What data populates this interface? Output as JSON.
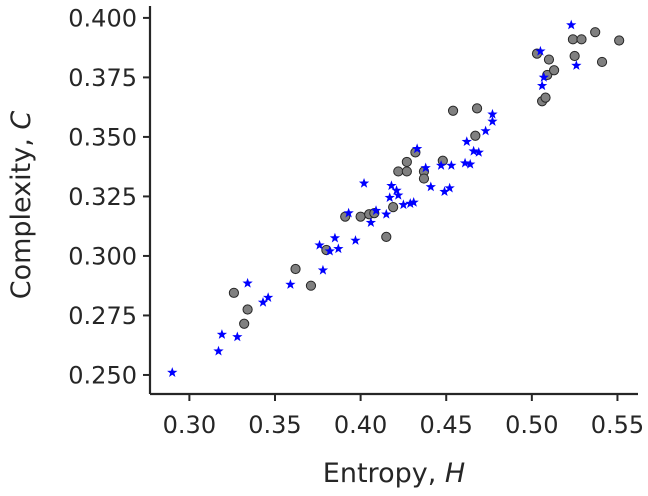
{
  "chart_data": {
    "type": "scatter",
    "title": "",
    "xlabel": "Entropy, ",
    "xlabel_symbol": "H",
    "ylabel": "Complexity, ",
    "ylabel_symbol": "C",
    "xlim": [
      0.277,
      0.562
    ],
    "ylim": [
      0.242,
      0.405
    ],
    "x_ticks": [
      0.3,
      0.35,
      0.4,
      0.45,
      0.5,
      0.55
    ],
    "x_tick_labels": [
      "0.30",
      "0.35",
      "0.40",
      "0.45",
      "0.50",
      "0.55"
    ],
    "y_ticks": [
      0.25,
      0.275,
      0.3,
      0.325,
      0.35,
      0.375,
      0.4
    ],
    "y_tick_labels": [
      "0.250",
      "0.275",
      "0.300",
      "0.325",
      "0.350",
      "0.375",
      "0.400"
    ],
    "grid": false,
    "series": [
      {
        "marker": "circle",
        "color": "#808080",
        "edgecolor": "#262626",
        "points": [
          [
            0.326,
            0.2845
          ],
          [
            0.332,
            0.2715
          ],
          [
            0.334,
            0.2775
          ],
          [
            0.362,
            0.2945
          ],
          [
            0.371,
            0.2875
          ],
          [
            0.38,
            0.3025
          ],
          [
            0.391,
            0.3165
          ],
          [
            0.4,
            0.3165
          ],
          [
            0.405,
            0.3175
          ],
          [
            0.408,
            0.318
          ],
          [
            0.415,
            0.308
          ],
          [
            0.419,
            0.3205
          ],
          [
            0.422,
            0.3355
          ],
          [
            0.427,
            0.3355
          ],
          [
            0.427,
            0.3395
          ],
          [
            0.432,
            0.3435
          ],
          [
            0.437,
            0.3355
          ],
          [
            0.437,
            0.3325
          ],
          [
            0.448,
            0.34
          ],
          [
            0.454,
            0.361
          ],
          [
            0.467,
            0.3505
          ],
          [
            0.468,
            0.362
          ],
          [
            0.503,
            0.385
          ],
          [
            0.506,
            0.365
          ],
          [
            0.508,
            0.3665
          ],
          [
            0.509,
            0.376
          ],
          [
            0.51,
            0.3825
          ],
          [
            0.513,
            0.378
          ],
          [
            0.524,
            0.391
          ],
          [
            0.525,
            0.384
          ],
          [
            0.529,
            0.391
          ],
          [
            0.537,
            0.394
          ],
          [
            0.541,
            0.3815
          ],
          [
            0.551,
            0.3905
          ]
        ]
      },
      {
        "marker": "star",
        "color": "#0000ff",
        "points": [
          [
            0.29,
            0.251
          ],
          [
            0.317,
            0.26
          ],
          [
            0.319,
            0.267
          ],
          [
            0.328,
            0.266
          ],
          [
            0.334,
            0.2885
          ],
          [
            0.343,
            0.2805
          ],
          [
            0.346,
            0.2825
          ],
          [
            0.359,
            0.288
          ],
          [
            0.376,
            0.3045
          ],
          [
            0.378,
            0.294
          ],
          [
            0.382,
            0.302
          ],
          [
            0.385,
            0.3075
          ],
          [
            0.387,
            0.303
          ],
          [
            0.393,
            0.318
          ],
          [
            0.397,
            0.3065
          ],
          [
            0.402,
            0.3305
          ],
          [
            0.406,
            0.314
          ],
          [
            0.409,
            0.319
          ],
          [
            0.415,
            0.3175
          ],
          [
            0.417,
            0.3245
          ],
          [
            0.418,
            0.3295
          ],
          [
            0.421,
            0.3275
          ],
          [
            0.422,
            0.3255
          ],
          [
            0.425,
            0.3215
          ],
          [
            0.429,
            0.322
          ],
          [
            0.431,
            0.3225
          ],
          [
            0.433,
            0.345
          ],
          [
            0.438,
            0.337
          ],
          [
            0.441,
            0.329
          ],
          [
            0.447,
            0.338
          ],
          [
            0.449,
            0.327
          ],
          [
            0.452,
            0.3285
          ],
          [
            0.453,
            0.338
          ],
          [
            0.461,
            0.339
          ],
          [
            0.462,
            0.348
          ],
          [
            0.464,
            0.3385
          ],
          [
            0.466,
            0.344
          ],
          [
            0.469,
            0.3435
          ],
          [
            0.473,
            0.3525
          ],
          [
            0.477,
            0.3595
          ],
          [
            0.477,
            0.3565
          ],
          [
            0.505,
            0.386
          ],
          [
            0.506,
            0.3715
          ],
          [
            0.507,
            0.375
          ],
          [
            0.523,
            0.397
          ],
          [
            0.526,
            0.38
          ]
        ]
      }
    ]
  }
}
